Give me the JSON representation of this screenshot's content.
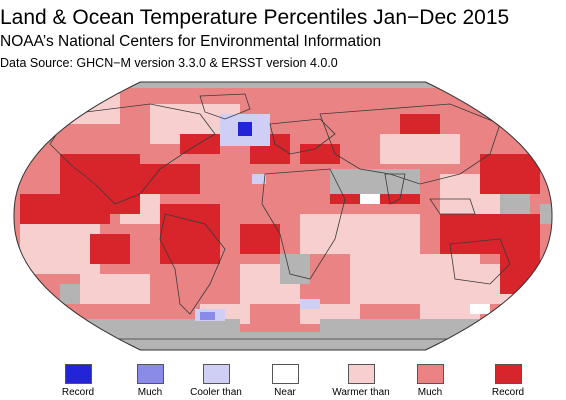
{
  "header": {
    "title": "Land & Ocean Temperature Percentiles Jan−Dec 2015",
    "subtitle": "NOAA’s National Centers for Environmental Information",
    "source": "Data Source: GHCN−M version 3.3.0 & ERSST version 4.0.0"
  },
  "map": {
    "projection": "Robinson",
    "ocean_missing_color": "#b4b4b4",
    "border_color": "#3a3a3a",
    "dominant_category": "Warmer than"
  },
  "legend": {
    "items": [
      {
        "label": "Record",
        "color": "#2323d8"
      },
      {
        "label": "Much",
        "color": "#8a8ae8"
      },
      {
        "label": "Cooler than",
        "color": "#cfcff5"
      },
      {
        "label": "Near",
        "color": "#ffffff"
      },
      {
        "label": "Warmer than",
        "color": "#f7cfcf"
      },
      {
        "label": "Much",
        "color": "#ea8484"
      },
      {
        "label": "Record",
        "color": "#d8242b"
      }
    ]
  }
}
